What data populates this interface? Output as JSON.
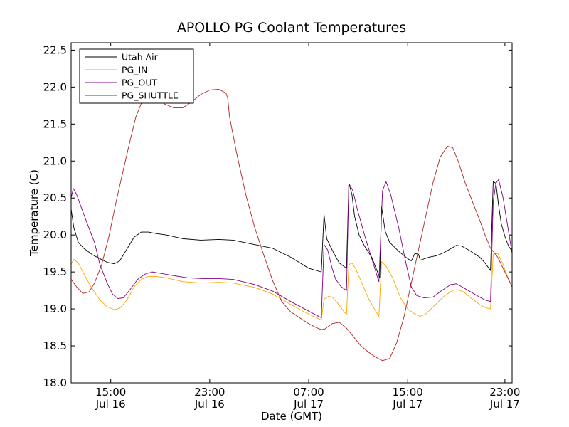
{
  "chart_data": {
    "type": "line",
    "title": "APOLLO PG Coolant Temperatures",
    "xlabel": "Date (GMT)",
    "ylabel": "Temperature (C)",
    "xlim": [
      11.3,
      35.8
    ],
    "ylim": [
      18.0,
      22.6
    ],
    "y_ticks": [
      {
        "value": 18.0,
        "label": "18.0"
      },
      {
        "value": 18.5,
        "label": "18.5"
      },
      {
        "value": 19.0,
        "label": "19.0"
      },
      {
        "value": 19.5,
        "label": "19.5"
      },
      {
        "value": 20.0,
        "label": "20.0"
      },
      {
        "value": 20.5,
        "label": "20.5"
      },
      {
        "value": 21.0,
        "label": "21.0"
      },
      {
        "value": 21.5,
        "label": "21.5"
      },
      {
        "value": 22.0,
        "label": "22.0"
      },
      {
        "value": 22.5,
        "label": "22.5"
      }
    ],
    "x_ticks": [
      {
        "value": 13.5,
        "time": "15:00",
        "date": "Jul 16"
      },
      {
        "value": 19.0,
        "time": "23:00",
        "date": "Jul 16"
      },
      {
        "value": 24.5,
        "time": "07:00",
        "date": "Jul 17"
      },
      {
        "value": 30.0,
        "time": "15:00",
        "date": "Jul 17"
      },
      {
        "value": 35.4,
        "time": "23:00",
        "date": "Jul 17"
      }
    ],
    "legend_position": "top-left",
    "series": [
      {
        "name": "Utah Air",
        "color": "#000000",
        "points": [
          [
            11.3,
            20.35
          ],
          [
            11.45,
            20.1
          ],
          [
            11.7,
            19.9
          ],
          [
            12.0,
            19.82
          ],
          [
            12.5,
            19.73
          ],
          [
            12.9,
            19.68
          ],
          [
            13.3,
            19.63
          ],
          [
            13.7,
            19.61
          ],
          [
            14.0,
            19.65
          ],
          [
            14.5,
            19.85
          ],
          [
            14.8,
            19.97
          ],
          [
            15.2,
            20.04
          ],
          [
            15.6,
            20.04
          ],
          [
            16.0,
            20.02
          ],
          [
            16.6,
            20.0
          ],
          [
            17.5,
            19.95
          ],
          [
            18.5,
            19.93
          ],
          [
            19.5,
            19.94
          ],
          [
            20.3,
            19.93
          ],
          [
            21.5,
            19.87
          ],
          [
            22.5,
            19.82
          ],
          [
            23.5,
            19.7
          ],
          [
            24.5,
            19.55
          ],
          [
            25.2,
            19.5
          ],
          [
            25.35,
            20.28
          ],
          [
            25.5,
            19.95
          ],
          [
            25.7,
            19.85
          ],
          [
            25.9,
            19.75
          ],
          [
            26.2,
            19.62
          ],
          [
            26.6,
            19.55
          ],
          [
            26.73,
            20.7
          ],
          [
            26.9,
            20.55
          ],
          [
            27.05,
            20.25
          ],
          [
            27.3,
            20.0
          ],
          [
            27.6,
            19.85
          ],
          [
            28.0,
            19.7
          ],
          [
            28.45,
            19.42
          ],
          [
            28.55,
            20.38
          ],
          [
            28.75,
            20.05
          ],
          [
            29.0,
            19.9
          ],
          [
            29.5,
            19.78
          ],
          [
            30.0,
            19.68
          ],
          [
            30.2,
            19.65
          ],
          [
            30.4,
            19.75
          ],
          [
            30.6,
            19.74
          ],
          [
            30.7,
            19.66
          ],
          [
            31.2,
            19.7
          ],
          [
            31.6,
            19.72
          ],
          [
            32.0,
            19.76
          ],
          [
            32.5,
            19.83
          ],
          [
            32.7,
            19.86
          ],
          [
            33.0,
            19.85
          ],
          [
            33.5,
            19.78
          ],
          [
            34.0,
            19.7
          ],
          [
            34.3,
            19.62
          ],
          [
            34.6,
            19.52
          ],
          [
            34.75,
            20.72
          ],
          [
            34.9,
            20.7
          ],
          [
            35.05,
            20.4
          ],
          [
            35.2,
            20.15
          ],
          [
            35.4,
            19.98
          ],
          [
            35.6,
            19.85
          ],
          [
            35.8,
            19.78
          ]
        ]
      },
      {
        "name": "PG_IN",
        "color": "#ffa500",
        "points": [
          [
            11.3,
            19.6
          ],
          [
            11.45,
            19.67
          ],
          [
            11.7,
            19.62
          ],
          [
            12.0,
            19.48
          ],
          [
            12.4,
            19.3
          ],
          [
            12.9,
            19.12
          ],
          [
            13.3,
            19.03
          ],
          [
            13.7,
            18.99
          ],
          [
            14.0,
            19.01
          ],
          [
            14.4,
            19.12
          ],
          [
            14.8,
            19.3
          ],
          [
            15.2,
            19.4
          ],
          [
            15.6,
            19.44
          ],
          [
            16.0,
            19.44
          ],
          [
            16.6,
            19.42
          ],
          [
            17.5,
            19.37
          ],
          [
            18.5,
            19.35
          ],
          [
            19.5,
            19.36
          ],
          [
            20.3,
            19.35
          ],
          [
            21.5,
            19.29
          ],
          [
            22.5,
            19.2
          ],
          [
            23.5,
            19.06
          ],
          [
            24.5,
            18.93
          ],
          [
            25.2,
            18.85
          ],
          [
            25.35,
            19.13
          ],
          [
            25.6,
            19.17
          ],
          [
            25.8,
            19.16
          ],
          [
            26.1,
            19.08
          ],
          [
            26.5,
            18.95
          ],
          [
            26.6,
            18.93
          ],
          [
            26.73,
            19.6
          ],
          [
            26.9,
            19.62
          ],
          [
            27.1,
            19.55
          ],
          [
            27.4,
            19.38
          ],
          [
            27.8,
            19.15
          ],
          [
            28.2,
            18.98
          ],
          [
            28.4,
            18.9
          ],
          [
            28.55,
            19.64
          ],
          [
            28.8,
            19.58
          ],
          [
            29.2,
            19.4
          ],
          [
            29.6,
            19.15
          ],
          [
            30.0,
            19.0
          ],
          [
            30.4,
            18.93
          ],
          [
            30.7,
            18.9
          ],
          [
            31.0,
            18.93
          ],
          [
            31.5,
            19.05
          ],
          [
            32.0,
            19.17
          ],
          [
            32.5,
            19.25
          ],
          [
            32.8,
            19.26
          ],
          [
            33.1,
            19.23
          ],
          [
            33.5,
            19.15
          ],
          [
            34.0,
            19.06
          ],
          [
            34.3,
            19.02
          ],
          [
            34.6,
            19.0
          ],
          [
            34.75,
            19.74
          ],
          [
            35.0,
            19.75
          ],
          [
            35.3,
            19.6
          ],
          [
            35.6,
            19.4
          ],
          [
            35.8,
            19.3
          ]
        ]
      },
      {
        "name": "PG_OUT",
        "color": "#800080",
        "points": [
          [
            11.3,
            20.5
          ],
          [
            11.42,
            20.63
          ],
          [
            11.6,
            20.55
          ],
          [
            11.9,
            20.35
          ],
          [
            12.2,
            20.15
          ],
          [
            12.6,
            19.9
          ],
          [
            12.9,
            19.6
          ],
          [
            13.3,
            19.35
          ],
          [
            13.6,
            19.2
          ],
          [
            13.9,
            19.14
          ],
          [
            14.2,
            19.15
          ],
          [
            14.6,
            19.27
          ],
          [
            15.0,
            19.4
          ],
          [
            15.4,
            19.47
          ],
          [
            15.8,
            19.5
          ],
          [
            16.3,
            19.48
          ],
          [
            17.0,
            19.45
          ],
          [
            17.8,
            19.42
          ],
          [
            18.6,
            19.41
          ],
          [
            19.5,
            19.41
          ],
          [
            20.3,
            19.4
          ],
          [
            21.5,
            19.33
          ],
          [
            22.5,
            19.24
          ],
          [
            23.5,
            19.1
          ],
          [
            24.5,
            18.97
          ],
          [
            25.2,
            18.88
          ],
          [
            25.35,
            19.87
          ],
          [
            25.55,
            19.8
          ],
          [
            25.8,
            19.55
          ],
          [
            26.0,
            19.4
          ],
          [
            26.3,
            19.3
          ],
          [
            26.6,
            19.25
          ],
          [
            26.73,
            20.7
          ],
          [
            26.95,
            20.6
          ],
          [
            27.2,
            20.35
          ],
          [
            27.6,
            20.0
          ],
          [
            28.0,
            19.68
          ],
          [
            28.4,
            19.37
          ],
          [
            28.6,
            20.6
          ],
          [
            28.8,
            20.72
          ],
          [
            29.05,
            20.55
          ],
          [
            29.5,
            20.1
          ],
          [
            29.9,
            19.62
          ],
          [
            30.2,
            19.3
          ],
          [
            30.5,
            19.18
          ],
          [
            30.9,
            19.15
          ],
          [
            31.4,
            19.16
          ],
          [
            31.9,
            19.25
          ],
          [
            32.4,
            19.33
          ],
          [
            32.7,
            19.34
          ],
          [
            33.0,
            19.3
          ],
          [
            33.5,
            19.23
          ],
          [
            34.0,
            19.16
          ],
          [
            34.3,
            19.12
          ],
          [
            34.6,
            19.1
          ],
          [
            34.75,
            20.45
          ],
          [
            34.9,
            20.7
          ],
          [
            35.05,
            20.75
          ],
          [
            35.3,
            20.5
          ],
          [
            35.6,
            20.05
          ],
          [
            35.8,
            19.75
          ]
        ]
      },
      {
        "name": "PG_SHUTTLE",
        "color": "#b22222",
        "points": [
          [
            11.3,
            19.4
          ],
          [
            11.6,
            19.3
          ],
          [
            11.95,
            19.21
          ],
          [
            12.3,
            19.23
          ],
          [
            12.6,
            19.35
          ],
          [
            13.0,
            19.6
          ],
          [
            13.4,
            19.98
          ],
          [
            13.8,
            20.45
          ],
          [
            14.2,
            20.88
          ],
          [
            14.6,
            21.3
          ],
          [
            14.9,
            21.6
          ],
          [
            15.2,
            21.78
          ],
          [
            15.6,
            21.85
          ],
          [
            16.0,
            21.84
          ],
          [
            16.5,
            21.77
          ],
          [
            17.0,
            21.72
          ],
          [
            17.5,
            21.72
          ],
          [
            18.0,
            21.8
          ],
          [
            18.5,
            21.9
          ],
          [
            19.0,
            21.96
          ],
          [
            19.5,
            21.97
          ],
          [
            19.9,
            21.92
          ],
          [
            20.0,
            21.85
          ],
          [
            20.1,
            21.6
          ],
          [
            20.5,
            21.1
          ],
          [
            21.0,
            20.55
          ],
          [
            21.5,
            20.1
          ],
          [
            22.0,
            19.73
          ],
          [
            22.5,
            19.38
          ],
          [
            23.0,
            19.1
          ],
          [
            23.5,
            18.96
          ],
          [
            24.0,
            18.88
          ],
          [
            24.5,
            18.8
          ],
          [
            24.9,
            18.75
          ],
          [
            25.2,
            18.72
          ],
          [
            25.4,
            18.73
          ],
          [
            25.8,
            18.8
          ],
          [
            26.2,
            18.82
          ],
          [
            26.6,
            18.74
          ],
          [
            27.0,
            18.62
          ],
          [
            27.4,
            18.5
          ],
          [
            27.8,
            18.42
          ],
          [
            28.2,
            18.35
          ],
          [
            28.6,
            18.3
          ],
          [
            29.0,
            18.33
          ],
          [
            29.4,
            18.55
          ],
          [
            29.8,
            18.9
          ],
          [
            30.2,
            19.35
          ],
          [
            30.6,
            19.8
          ],
          [
            31.0,
            20.25
          ],
          [
            31.4,
            20.7
          ],
          [
            31.8,
            21.05
          ],
          [
            32.2,
            21.2
          ],
          [
            32.5,
            21.18
          ],
          [
            32.8,
            21.0
          ],
          [
            33.2,
            20.7
          ],
          [
            33.6,
            20.45
          ],
          [
            34.0,
            20.2
          ],
          [
            34.3,
            20.0
          ],
          [
            34.6,
            19.82
          ],
          [
            34.75,
            19.78
          ],
          [
            35.0,
            19.7
          ],
          [
            35.3,
            19.55
          ],
          [
            35.6,
            19.4
          ],
          [
            35.8,
            19.3
          ]
        ]
      }
    ]
  }
}
